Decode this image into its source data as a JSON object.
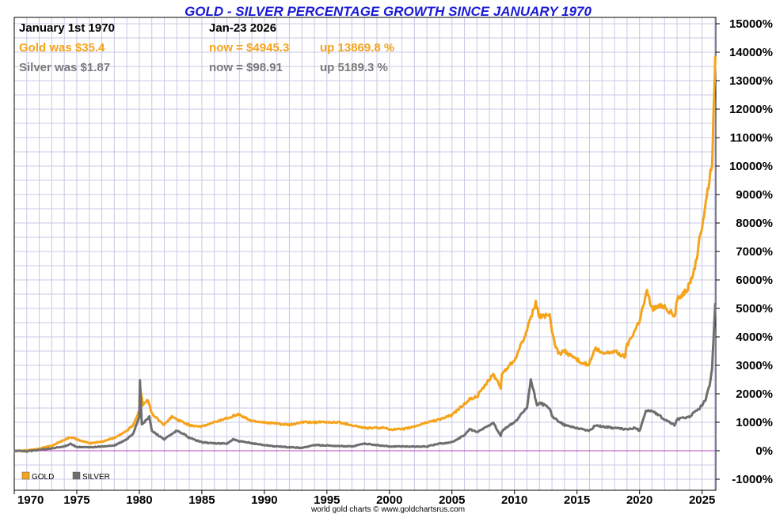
{
  "title": "GOLD - SILVER PERCENTAGE GROWTH SINCE JANUARY 1970",
  "start_label": "January 1st 1970",
  "end_label": "Jan-23  2026",
  "gold_info": {
    "was": "Gold was $35.4",
    "now": "now = $4945.3",
    "up": "up 13869.8 %"
  },
  "silver_info": {
    "was": "Silver was $1.87",
    "now": "now = $98.91",
    "up": "up 5189.3 %"
  },
  "credit": "world gold charts © www.goldchartsrus.com",
  "colors": {
    "gold": "#f5a31a",
    "silver": "#6e6e6e",
    "zero_line": "#c040c0",
    "grid": "#c8c8e6",
    "title": "#1a1ad6"
  },
  "chart_data": {
    "type": "line",
    "title": "GOLD - SILVER PERCENTAGE GROWTH SINCE JANUARY 1970",
    "xlabel": "",
    "ylabel": "",
    "xlim": [
      1970,
      2026.1
    ],
    "ylim": [
      -1000,
      15000
    ],
    "grid": true,
    "legend": "bottom-left",
    "x_ticks": [
      1970,
      1975,
      1980,
      1985,
      1990,
      1995,
      2000,
      2005,
      2010,
      2015,
      2020,
      2025
    ],
    "y_ticks": [
      -1000,
      0,
      1000,
      2000,
      3000,
      4000,
      5000,
      6000,
      7000,
      8000,
      9000,
      10000,
      11000,
      12000,
      13000,
      14000,
      15000
    ],
    "y_tick_labels": [
      "-1000%",
      "0%",
      "1000%",
      "2000%",
      "3000%",
      "4000%",
      "5000%",
      "6000%",
      "7000%",
      "8000%",
      "9000%",
      "10000%",
      "11000%",
      "12000%",
      "13000%",
      "14000%",
      "15000%"
    ],
    "series": [
      {
        "name": "GOLD",
        "x": [
          1970,
          1971,
          1972,
          1973,
          1974,
          1974.5,
          1975,
          1976,
          1977,
          1978,
          1979,
          1979.5,
          1980.0,
          1980.05,
          1980.3,
          1980.7,
          1981,
          1982,
          1982.6,
          1983,
          1984,
          1985,
          1986,
          1987,
          1987.9,
          1988.5,
          1989,
          1990,
          1991,
          1992,
          1993,
          1994,
          1995,
          1996,
          1997,
          1998,
          1999,
          1999.8,
          2000,
          2001,
          2002,
          2003,
          2004,
          2005,
          2006,
          2006.4,
          2007,
          2008,
          2008.3,
          2008.9,
          2009,
          2010,
          2011,
          2011.7,
          2012,
          2012.8,
          2013,
          2013.5,
          2014,
          2015,
          2015.9,
          2016.5,
          2017,
          2018,
          2018.8,
          2019,
          2019.7,
          2020,
          2020.6,
          2021,
          2022,
          2022.8,
          2023,
          2024,
          2024.5,
          2025,
          2025.3,
          2025.6,
          2025.8,
          2025.9,
          2026.06
        ],
        "values": [
          0,
          15,
          70,
          180,
          380,
          480,
          400,
          260,
          320,
          450,
          700,
          900,
          1400,
          2250,
          1600,
          1800,
          1300,
          900,
          1200,
          1100,
          900,
          850,
          1000,
          1150,
          1280,
          1150,
          1050,
          1000,
          950,
          900,
          1000,
          1000,
          1000,
          1000,
          900,
          800,
          800,
          800,
          750,
          750,
          850,
          1000,
          1100,
          1250,
          1650,
          1800,
          1900,
          2500,
          2700,
          2200,
          2700,
          3200,
          4200,
          5200,
          4700,
          4800,
          4100,
          3400,
          3500,
          3200,
          3000,
          3600,
          3400,
          3500,
          3300,
          3700,
          4300,
          4600,
          5600,
          5000,
          5100,
          4700,
          5300,
          5800,
          6600,
          7900,
          8800,
          9500,
          10200,
          11500,
          13870
        ]
      },
      {
        "name": "SILVER",
        "x": [
          1970,
          1971,
          1972,
          1973,
          1974,
          1974.5,
          1975,
          1976,
          1977,
          1978,
          1979,
          1979.5,
          1980.0,
          1980.05,
          1980.2,
          1980.8,
          1981,
          1982,
          1983,
          1983.5,
          1984,
          1985,
          1986,
          1987,
          1987.5,
          1988,
          1990,
          1991,
          1993,
          1994,
          1997,
          1998,
          2000,
          2001,
          2002,
          2003,
          2004,
          2005,
          2006,
          2006.4,
          2007,
          2008,
          2008.3,
          2008.9,
          2009,
          2010,
          2011,
          2011.3,
          2011.8,
          2012,
          2012.8,
          2013,
          2014,
          2015,
          2016,
          2016.5,
          2017,
          2018,
          2019,
          2019.7,
          2020,
          2020.5,
          2021,
          2022,
          2022.8,
          2023,
          2024,
          2024.8,
          2025,
          2025.3,
          2025.6,
          2025.8,
          2025.9,
          2026.06
        ],
        "values": [
          0,
          -20,
          30,
          80,
          150,
          250,
          130,
          120,
          150,
          180,
          400,
          600,
          1200,
          2500,
          900,
          1200,
          700,
          400,
          700,
          600,
          450,
          300,
          260,
          250,
          400,
          330,
          200,
          150,
          100,
          200,
          150,
          250,
          150,
          150,
          150,
          150,
          250,
          300,
          550,
          750,
          650,
          900,
          1000,
          500,
          700,
          1000,
          1500,
          2500,
          1600,
          1700,
          1500,
          1200,
          900,
          800,
          700,
          900,
          850,
          800,
          750,
          800,
          700,
          1400,
          1400,
          1100,
          900,
          1100,
          1200,
          1500,
          1600,
          1800,
          2300,
          2900,
          3800,
          5190
        ]
      }
    ]
  }
}
